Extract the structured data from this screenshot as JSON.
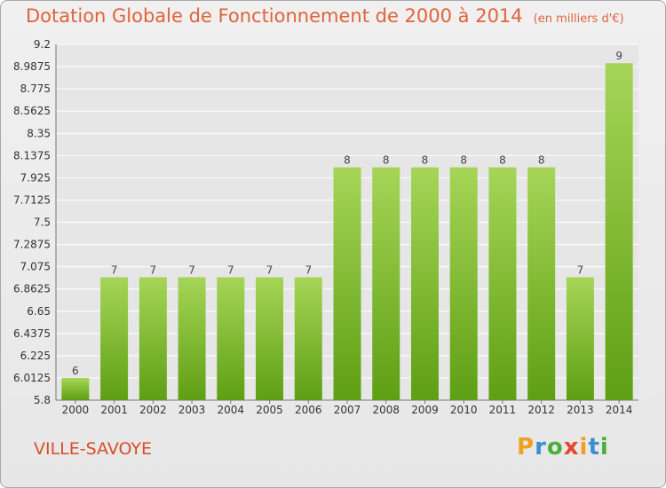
{
  "title": "Dotation Globale de Fonctionnement de 2000 à 2014",
  "title_unit": "(en milliers d'€)",
  "commune": "VILLE-SAVOYE",
  "brand": {
    "text": "Proxiti",
    "letters": [
      {
        "ch": "P",
        "color": "#f0a020"
      },
      {
        "ch": "r",
        "color": "#3a8fd0"
      },
      {
        "ch": "o",
        "color": "#4caf3a"
      },
      {
        "ch": "x",
        "color": "#e8452a"
      },
      {
        "ch": "i",
        "color": "#f0a020"
      },
      {
        "ch": "t",
        "color": "#3a8fd0"
      },
      {
        "ch": "i",
        "color": "#4caf3a"
      }
    ]
  },
  "colors": {
    "bar_top": "#a6d557",
    "bar_bottom": "#5e9f14",
    "title": "#e0633a",
    "grid": "#ffffff"
  },
  "chart_data": {
    "type": "bar",
    "categories": [
      "2000",
      "2001",
      "2002",
      "2003",
      "2004",
      "2005",
      "2006",
      "2007",
      "2008",
      "2009",
      "2010",
      "2011",
      "2012",
      "2013",
      "2014"
    ],
    "values": [
      6,
      7,
      7,
      7,
      7,
      7,
      7,
      8,
      8,
      8,
      8,
      8,
      8,
      7,
      9
    ],
    "value_labels": [
      "6",
      "7",
      "7",
      "7",
      "7",
      "7",
      "7",
      "8",
      "8",
      "8",
      "8",
      "8",
      "8",
      "7",
      "9"
    ],
    "bar_levels": [
      6.0125,
      6.975,
      6.975,
      6.975,
      6.975,
      6.975,
      6.975,
      8.025,
      8.025,
      8.025,
      8.025,
      8.025,
      8.025,
      6.975,
      9.02
    ],
    "ylim": [
      5.8,
      9.2
    ],
    "yticks": [
      "5.8",
      "6.0125",
      "6.225",
      "6.4375",
      "6.65",
      "6.8625",
      "7.075",
      "7.2875",
      "7.5",
      "7.7125",
      "7.925",
      "8.1375",
      "8.35",
      "8.5625",
      "8.775",
      "8.9875",
      "9.2"
    ],
    "grid": true,
    "title": "Dotation Globale de Fonctionnement de 2000 à 2014",
    "ylabel": "",
    "xlabel": ""
  }
}
